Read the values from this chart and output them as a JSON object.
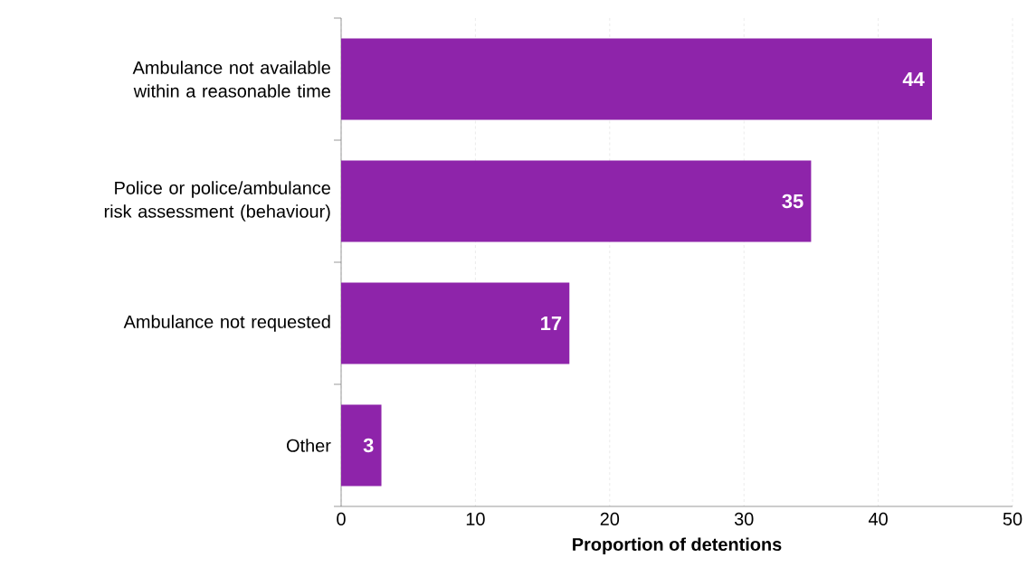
{
  "chart_data": {
    "type": "bar",
    "orientation": "horizontal",
    "categories": [
      "Ambulance not available within a reasonable time",
      "Police or police/ambulance risk assessment (behaviour)",
      "Ambulance not requested",
      "Other"
    ],
    "values": [
      44,
      35,
      17,
      3
    ],
    "color": "#8e24aa",
    "xlabel": "Proportion of detentions",
    "xlim": [
      0,
      50
    ],
    "xticks": [
      0,
      10,
      20,
      30,
      40,
      50
    ],
    "grid": "x",
    "data_labels": true
  }
}
